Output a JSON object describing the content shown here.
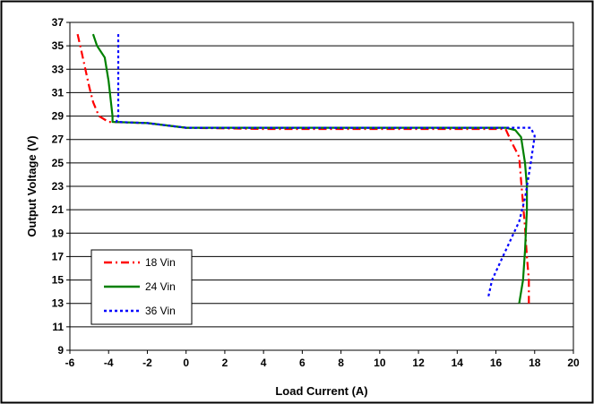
{
  "chart_data": {
    "type": "line",
    "xlabel": "Load Current (A)",
    "ylabel": "Output Voltage (V)",
    "xlim": [
      -6,
      20
    ],
    "ylim": [
      9,
      37
    ],
    "xticks": [
      -6,
      -4,
      -2,
      0,
      2,
      4,
      6,
      8,
      10,
      12,
      14,
      16,
      18,
      20
    ],
    "yticks": [
      9,
      11,
      13,
      15,
      17,
      19,
      21,
      23,
      25,
      27,
      29,
      31,
      33,
      35,
      37
    ],
    "grid": "horizontal",
    "legend_position": "bottom-left",
    "series": [
      {
        "name": "18 Vin",
        "color": "#ff0000",
        "dash": "dash-dot",
        "points": [
          [
            -5.6,
            36
          ],
          [
            -5.4,
            34.5
          ],
          [
            -5.2,
            33
          ],
          [
            -5.0,
            31.5
          ],
          [
            -4.8,
            30.2
          ],
          [
            -4.5,
            29.0
          ],
          [
            -4.0,
            28.5
          ],
          [
            -2.0,
            28.4
          ],
          [
            0,
            28.0
          ],
          [
            4,
            27.9
          ],
          [
            8,
            27.9
          ],
          [
            12,
            27.9
          ],
          [
            16.5,
            27.9
          ],
          [
            16.8,
            26.8
          ],
          [
            17.2,
            25.5
          ],
          [
            17.3,
            23.5
          ],
          [
            17.4,
            21.5
          ],
          [
            17.5,
            19.5
          ],
          [
            17.6,
            17.0
          ],
          [
            17.7,
            15.0
          ],
          [
            17.7,
            13.0
          ]
        ]
      },
      {
        "name": "24 Vin",
        "color": "#008000",
        "dash": "solid",
        "points": [
          [
            -4.8,
            36
          ],
          [
            -4.6,
            35
          ],
          [
            -4.2,
            34
          ],
          [
            -4.0,
            32
          ],
          [
            -3.8,
            29.0
          ],
          [
            -3.8,
            28.5
          ],
          [
            -2.0,
            28.4
          ],
          [
            0,
            28.0
          ],
          [
            4,
            28.0
          ],
          [
            8,
            28.0
          ],
          [
            12,
            28.0
          ],
          [
            16.5,
            28.0
          ],
          [
            17.0,
            27.8
          ],
          [
            17.3,
            27.2
          ],
          [
            17.5,
            25.0
          ],
          [
            17.6,
            23.0
          ],
          [
            17.6,
            21.0
          ],
          [
            17.5,
            17.5
          ],
          [
            17.4,
            15.0
          ],
          [
            17.2,
            13.0
          ]
        ]
      },
      {
        "name": "36 Vin",
        "color": "#0000ff",
        "dash": "dotted",
        "points": [
          [
            -3.5,
            36
          ],
          [
            -3.5,
            33
          ],
          [
            -3.5,
            29
          ],
          [
            -3.6,
            28.5
          ],
          [
            -2.0,
            28.4
          ],
          [
            0,
            28.0
          ],
          [
            4,
            28.0
          ],
          [
            8,
            28.0
          ],
          [
            12,
            28.0
          ],
          [
            16,
            28.0
          ],
          [
            17.8,
            28.0
          ],
          [
            18.0,
            27.3
          ],
          [
            17.8,
            25.0
          ],
          [
            17.5,
            22.0
          ],
          [
            17.2,
            20.0
          ],
          [
            16.5,
            17.5
          ],
          [
            15.8,
            15.0
          ],
          [
            15.6,
            13.5
          ]
        ]
      }
    ]
  }
}
